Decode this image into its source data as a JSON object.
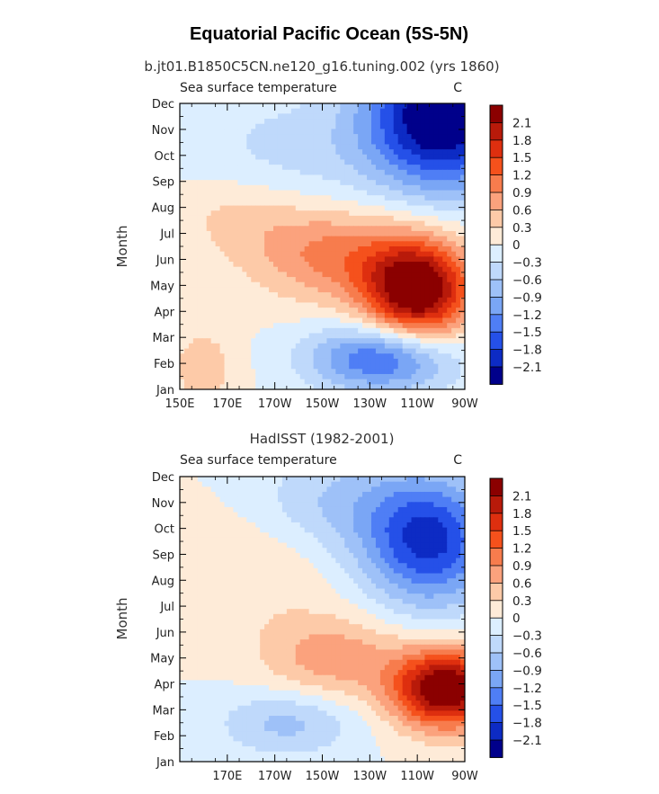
{
  "figure": {
    "title": "Equatorial Pacific Ocean (5S-5N)"
  },
  "chart_data": [
    {
      "type": "heatmap",
      "panel_title": "b.jt01.B1850C5CN.ne120_g16.tuning.002 (yrs 1860)",
      "field_label": "Sea surface temperature",
      "units": "C",
      "ylabel": "Month",
      "xlabel": "",
      "x_tick_labels": [
        "150E",
        "170E",
        "170W",
        "150W",
        "130W",
        "110W",
        "90W"
      ],
      "y_tick_labels": [
        "Jan",
        "Feb",
        "Mar",
        "Apr",
        "May",
        "Jun",
        "Jul",
        "Aug",
        "Sep",
        "Oct",
        "Nov",
        "Dec"
      ],
      "xlim_lon_east": [
        150,
        270
      ],
      "ylim_month": [
        1,
        12
      ],
      "features": [
        {
          "lon": 250,
          "month": 4.8,
          "amp": 2.6,
          "rlon": 22,
          "rmon": 1.9
        },
        {
          "lon": 215,
          "month": 6.2,
          "amp": 1.0,
          "rlon": 35,
          "rmon": 1.8
        },
        {
          "lon": 175,
          "month": 7.8,
          "amp": 0.4,
          "rlon": 30,
          "rmon": 1.6
        },
        {
          "lon": 160,
          "month": 1.8,
          "amp": 0.5,
          "rlon": 14,
          "rmon": 1.6
        },
        {
          "lon": 260,
          "month": 11.5,
          "amp": -2.6,
          "rlon": 32,
          "rmon": 2.8
        },
        {
          "lon": 235,
          "month": 2.2,
          "amp": -1.6,
          "rlon": 30,
          "rmon": 1.3
        },
        {
          "lon": 195,
          "month": 10.0,
          "amp": -0.4,
          "rlon": 40,
          "rmon": 2.5
        }
      ]
    },
    {
      "type": "heatmap",
      "panel_title": "HadISST (1982-2001)",
      "field_label": "Sea surface temperature",
      "units": "C",
      "ylabel": "Month",
      "xlabel": "",
      "x_tick_labels": [
        "170E",
        "170W",
        "150W",
        "130W",
        "110W",
        "90W"
      ],
      "y_tick_labels": [
        "Jan",
        "Feb",
        "Mar",
        "Apr",
        "May",
        "Jun",
        "Jul",
        "Aug",
        "Sep",
        "Oct",
        "Nov",
        "Dec"
      ],
      "xlim_lon_east": [
        150,
        270
      ],
      "ylim_month": [
        1,
        12
      ],
      "features": [
        {
          "lon": 262,
          "month": 3.8,
          "amp": 2.6,
          "rlon": 22,
          "rmon": 1.5
        },
        {
          "lon": 215,
          "month": 5.0,
          "amp": 0.8,
          "rlon": 30,
          "rmon": 1.6
        },
        {
          "lon": 180,
          "month": 8.5,
          "amp": 0.3,
          "rlon": 40,
          "rmon": 2.5
        },
        {
          "lon": 255,
          "month": 9.5,
          "amp": -1.9,
          "rlon": 28,
          "rmon": 2.5
        },
        {
          "lon": 195,
          "month": 2.5,
          "amp": -0.7,
          "rlon": 28,
          "rmon": 1.3
        },
        {
          "lon": 215,
          "month": 11.0,
          "amp": -0.6,
          "rlon": 35,
          "rmon": 2.0
        }
      ]
    }
  ],
  "colorbar": {
    "levels": [
      "2.1",
      "1.8",
      "1.5",
      "1.2",
      "0.9",
      "0.6",
      "0.3",
      "0",
      "−0.3",
      "−0.6",
      "−0.9",
      "−1.2",
      "−1.5",
      "−1.8",
      "−2.1"
    ],
    "colors": [
      "#8b0000",
      "#b81a0a",
      "#de2f0f",
      "#f5511c",
      "#f77c4d",
      "#fba27d",
      "#fdcaa8",
      "#feebd8",
      "#dceeff",
      "#bfd9fb",
      "#9ec1f8",
      "#7aa6f5",
      "#4f7ef5",
      "#2550e8",
      "#0d2bc4",
      "#00008b"
    ]
  }
}
